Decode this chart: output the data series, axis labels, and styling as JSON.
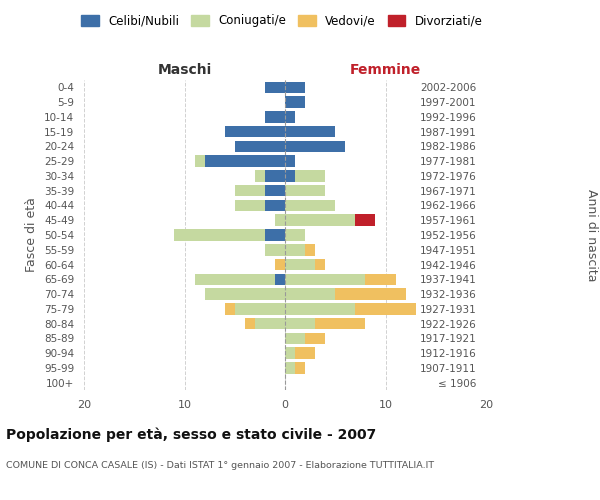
{
  "age_groups": [
    "100+",
    "95-99",
    "90-94",
    "85-89",
    "80-84",
    "75-79",
    "70-74",
    "65-69",
    "60-64",
    "55-59",
    "50-54",
    "45-49",
    "40-44",
    "35-39",
    "30-34",
    "25-29",
    "20-24",
    "15-19",
    "10-14",
    "5-9",
    "0-4"
  ],
  "birth_years": [
    "≤ 1906",
    "1907-1911",
    "1912-1916",
    "1917-1921",
    "1922-1926",
    "1927-1931",
    "1932-1936",
    "1937-1941",
    "1942-1946",
    "1947-1951",
    "1952-1956",
    "1957-1961",
    "1962-1966",
    "1967-1971",
    "1972-1976",
    "1977-1981",
    "1982-1986",
    "1987-1991",
    "1992-1996",
    "1997-2001",
    "2002-2006"
  ],
  "male": {
    "celibi": [
      0,
      0,
      0,
      0,
      0,
      0,
      0,
      1,
      0,
      0,
      2,
      0,
      2,
      2,
      2,
      8,
      5,
      6,
      2,
      0,
      2
    ],
    "coniugati": [
      0,
      0,
      0,
      0,
      3,
      5,
      8,
      8,
      0,
      2,
      9,
      1,
      3,
      3,
      1,
      1,
      0,
      0,
      0,
      0,
      0
    ],
    "vedovi": [
      0,
      0,
      0,
      0,
      1,
      1,
      0,
      0,
      1,
      0,
      0,
      0,
      0,
      0,
      0,
      0,
      0,
      0,
      0,
      0,
      0
    ],
    "divorziati": [
      0,
      0,
      0,
      0,
      0,
      0,
      0,
      0,
      0,
      0,
      0,
      0,
      0,
      0,
      0,
      0,
      0,
      0,
      0,
      0,
      0
    ]
  },
  "female": {
    "nubili": [
      0,
      0,
      0,
      0,
      0,
      0,
      0,
      0,
      0,
      0,
      0,
      0,
      0,
      0,
      1,
      1,
      6,
      5,
      1,
      2,
      2
    ],
    "coniugate": [
      0,
      1,
      1,
      2,
      3,
      7,
      5,
      8,
      3,
      2,
      2,
      7,
      5,
      4,
      3,
      0,
      0,
      0,
      0,
      0,
      0
    ],
    "vedove": [
      0,
      1,
      2,
      2,
      5,
      6,
      7,
      3,
      1,
      1,
      0,
      0,
      0,
      0,
      0,
      0,
      0,
      0,
      0,
      0,
      0
    ],
    "divorziate": [
      0,
      0,
      0,
      0,
      0,
      0,
      0,
      0,
      0,
      0,
      0,
      2,
      0,
      0,
      0,
      0,
      0,
      0,
      0,
      0,
      0
    ]
  },
  "colors": {
    "celibi_nubili": "#3d6fa8",
    "coniugati": "#c5d9a0",
    "vedovi": "#f0c060",
    "divorziati": "#c0202a"
  },
  "xlim": 20,
  "title": "Popolazione per età, sesso e stato civile - 2007",
  "subtitle": "COMUNE DI CONCA CASALE (IS) - Dati ISTAT 1° gennaio 2007 - Elaborazione TUTTITALIA.IT",
  "ylabel_left": "Fasce di età",
  "ylabel_right": "Anni di nascita",
  "xlabel_left": "Maschi",
  "xlabel_right": "Femmine"
}
